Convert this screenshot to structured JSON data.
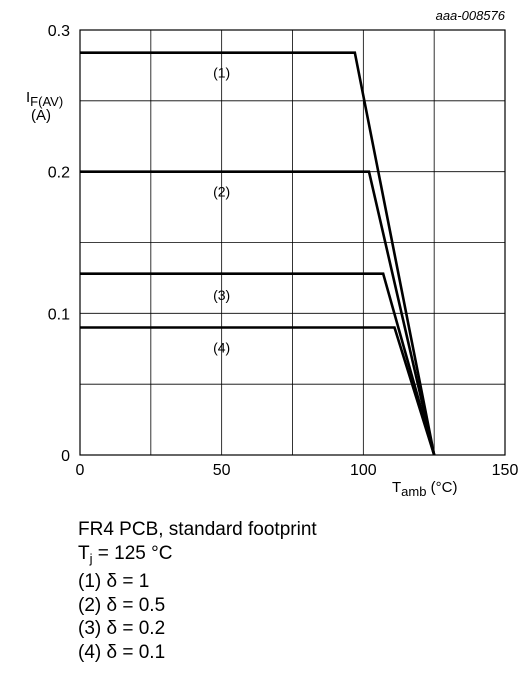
{
  "chart_data": {
    "type": "line",
    "figure_id": "aaa-008576",
    "ylabel_main": "I",
    "ylabel_sub": "F(AV)",
    "ylabel_unit": "(A)",
    "xlabel_main": "T",
    "xlabel_sub": "amb",
    "xlabel_unit": " (°C)",
    "xlim": [
      0,
      150
    ],
    "ylim": [
      0,
      0.3
    ],
    "x_ticks": [
      0,
      50,
      100,
      150
    ],
    "x_tick_labels": [
      "0",
      "50",
      "100",
      "150"
    ],
    "y_ticks": [
      0,
      0.1,
      0.2,
      0.3
    ],
    "y_tick_labels": [
      "0",
      "0.1",
      "0.2",
      "0.3"
    ],
    "grid_x": [
      0,
      25,
      50,
      75,
      100,
      125,
      150
    ],
    "grid_y": [
      0,
      0.05,
      0.1,
      0.15,
      0.2,
      0.25,
      0.3
    ],
    "grid": true,
    "series": [
      {
        "name": "(1)",
        "label_at": [
          50,
          0.27
        ],
        "points": [
          [
            0,
            0.284
          ],
          [
            97,
            0.284
          ],
          [
            125,
            0
          ]
        ]
      },
      {
        "name": "(2)",
        "label_at": [
          50,
          0.186
        ],
        "points": [
          [
            0,
            0.2
          ],
          [
            102,
            0.2
          ],
          [
            125,
            0
          ]
        ]
      },
      {
        "name": "(3)",
        "label_at": [
          50,
          0.113
        ],
        "points": [
          [
            0,
            0.128
          ],
          [
            107,
            0.128
          ],
          [
            125,
            0
          ]
        ]
      },
      {
        "name": "(4)",
        "label_at": [
          50,
          0.076
        ],
        "points": [
          [
            0,
            0.09
          ],
          [
            111,
            0.09
          ],
          [
            125,
            0
          ]
        ]
      }
    ]
  },
  "notes": {
    "line1": "FR4 PCB, standard footprint",
    "line2_main": "T",
    "line2_sub": "j",
    "line2_rest": " = 125 °C",
    "line3": "(1) δ = 1",
    "line4": "(2) δ = 0.5",
    "line5": "(3) δ = 0.2",
    "line6": "(4) δ = 0.1"
  }
}
